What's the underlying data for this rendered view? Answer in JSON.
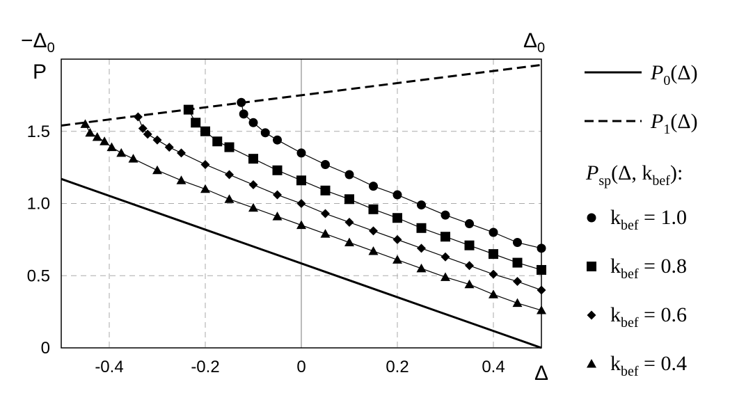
{
  "chart_data": {
    "type": "line",
    "ylabel": "P",
    "xlabel": "Δ",
    "top_left_label": "−Δ",
    "top_left_label_sub": "0",
    "top_right_label": "Δ",
    "top_right_label_sub": "0",
    "xlim": [
      -0.5,
      0.5
    ],
    "ylim": [
      0,
      2.0
    ],
    "x_ticks": [
      -0.4,
      -0.2,
      0,
      0.2,
      0.4
    ],
    "x_tick_labels": [
      "-0.4",
      "-0.2",
      "0",
      "0.2",
      "0.4"
    ],
    "y_ticks": [
      0,
      0.5,
      1.0,
      1.5
    ],
    "y_tick_labels": [
      "0",
      "0.5",
      "1.0",
      "1.5"
    ],
    "grid": true,
    "legend_placement": "right",
    "lines": [
      {
        "name": "P",
        "name_sub": "0",
        "name_args": "(Δ)",
        "style": "solid",
        "x": [
          -0.5,
          0.5
        ],
        "y": [
          1.17,
          0.0
        ]
      },
      {
        "name": "P",
        "name_sub": "1",
        "name_args": "(Δ)",
        "style": "dashed",
        "x": [
          -0.5,
          0.5
        ],
        "y": [
          1.54,
          1.96
        ]
      }
    ],
    "series_group_label": "P",
    "series_group_label_sub": "sp",
    "series_group_label_args": "(Δ, k",
    "series_group_label_args_sub": "bef",
    "series_group_label_tail": "):",
    "series": [
      {
        "name_prefix": "k",
        "name_sub": "bef",
        "name_value": " = 1.0",
        "marker": "circle",
        "x": [
          -0.125,
          -0.12,
          -0.1,
          -0.075,
          -0.05,
          0,
          0.05,
          0.1,
          0.15,
          0.2,
          0.25,
          0.3,
          0.35,
          0.4,
          0.45,
          0.5
        ],
        "y": [
          1.7,
          1.62,
          1.56,
          1.49,
          1.44,
          1.35,
          1.27,
          1.2,
          1.12,
          1.06,
          0.99,
          0.92,
          0.86,
          0.8,
          0.73,
          0.69
        ]
      },
      {
        "name_prefix": "k",
        "name_sub": "bef",
        "name_value": " = 0.8",
        "marker": "square",
        "x": [
          -0.235,
          -0.22,
          -0.2,
          -0.175,
          -0.15,
          -0.1,
          -0.05,
          0,
          0.05,
          0.1,
          0.15,
          0.2,
          0.25,
          0.3,
          0.35,
          0.4,
          0.45,
          0.5
        ],
        "y": [
          1.65,
          1.56,
          1.5,
          1.43,
          1.39,
          1.31,
          1.23,
          1.16,
          1.09,
          1.03,
          0.96,
          0.9,
          0.83,
          0.77,
          0.71,
          0.65,
          0.59,
          0.54
        ]
      },
      {
        "name_prefix": "k",
        "name_sub": "bef",
        "name_value": " = 0.6",
        "marker": "diamond",
        "x": [
          -0.34,
          -0.33,
          -0.32,
          -0.3,
          -0.275,
          -0.25,
          -0.2,
          -0.15,
          -0.1,
          -0.05,
          0,
          0.05,
          0.1,
          0.15,
          0.2,
          0.25,
          0.3,
          0.35,
          0.4,
          0.45,
          0.5
        ],
        "y": [
          1.6,
          1.52,
          1.48,
          1.44,
          1.39,
          1.35,
          1.27,
          1.2,
          1.13,
          1.06,
          1.0,
          0.93,
          0.87,
          0.81,
          0.75,
          0.69,
          0.63,
          0.57,
          0.51,
          0.46,
          0.4
        ]
      },
      {
        "name_prefix": "k",
        "name_sub": "bef",
        "name_value": " = 0.4",
        "marker": "triangle",
        "x": [
          -0.45,
          -0.44,
          -0.425,
          -0.41,
          -0.395,
          -0.375,
          -0.35,
          -0.3,
          -0.25,
          -0.2,
          -0.15,
          -0.1,
          -0.05,
          0,
          0.05,
          0.1,
          0.15,
          0.2,
          0.25,
          0.3,
          0.35,
          0.4,
          0.45,
          0.5
        ],
        "y": [
          1.55,
          1.49,
          1.46,
          1.43,
          1.39,
          1.35,
          1.31,
          1.23,
          1.16,
          1.1,
          1.03,
          0.97,
          0.91,
          0.85,
          0.79,
          0.73,
          0.67,
          0.61,
          0.55,
          0.49,
          0.44,
          0.37,
          0.31,
          0.26
        ]
      }
    ]
  }
}
